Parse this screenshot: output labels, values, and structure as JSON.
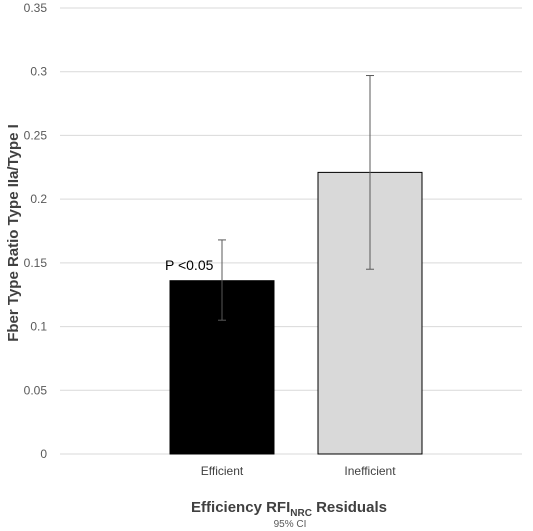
{
  "chart_data": {
    "type": "bar",
    "categories": [
      "Efficient",
      "Inefficient"
    ],
    "values": [
      0.136,
      0.221
    ],
    "error_bars": {
      "lower": [
        0.105,
        0.145
      ],
      "upper": [
        0.168,
        0.297
      ]
    },
    "bar_colors": [
      "#000000",
      "#d9d9d9"
    ],
    "ylabel": "Fber Type Ratio Type IIa/Type I",
    "xlabel_main": "Efficiency RFI",
    "xlabel_sub": "NRC",
    "xlabel_tail": " Residuals",
    "subtitle": "95% CI",
    "annotation": "P <0.05",
    "ylim": [
      0,
      0.35
    ],
    "yticks": [
      0,
      0.05,
      0.1,
      0.15,
      0.2,
      0.25,
      0.3,
      0.35
    ],
    "ytick_labels": [
      "0",
      "0.05",
      "0.1",
      "0.15",
      "0.2",
      "0.25",
      "0.3",
      "0.35"
    ],
    "grid": true,
    "legend": "none"
  }
}
